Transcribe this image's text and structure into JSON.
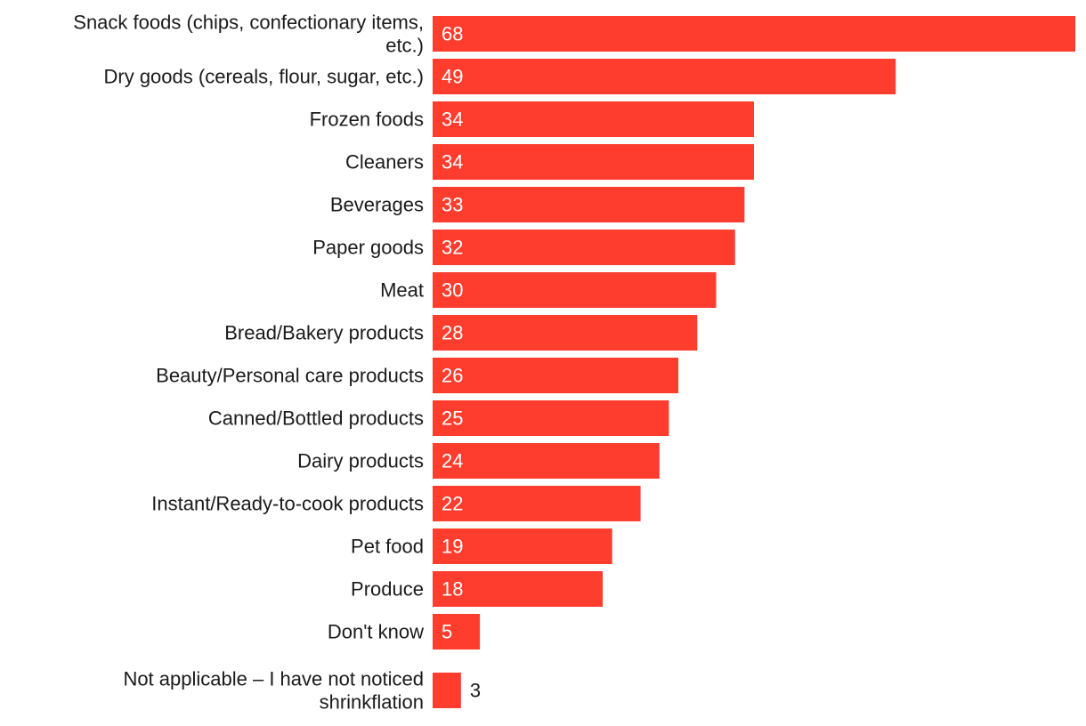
{
  "chart_data": {
    "type": "bar",
    "orientation": "horizontal",
    "title": "",
    "xlabel": "",
    "ylabel": "",
    "xlim": [
      0,
      68
    ],
    "grid": false,
    "bar_color": "#ff3d2e",
    "inside_label_color": "#ffffff",
    "outside_label_color": "#1a1a1a",
    "category_label_color": "#1a1a1a",
    "categories": [
      [
        "Snack foods (chips, confectionary items,",
        "etc.)"
      ],
      [
        "Dry goods (cereals, flour, sugar, etc.)"
      ],
      [
        "Frozen foods"
      ],
      [
        "Cleaners"
      ],
      [
        "Beverages"
      ],
      [
        "Paper goods"
      ],
      [
        "Meat"
      ],
      [
        "Bread/Bakery products"
      ],
      [
        "Beauty/Personal care products"
      ],
      [
        "Canned/Bottled products"
      ],
      [
        "Dairy products"
      ],
      [
        "Instant/Ready-to-cook products"
      ],
      [
        "Pet food"
      ],
      [
        "Produce"
      ],
      [
        "Don't know"
      ],
      [
        "Not applicable – I have not noticed",
        "shrinkflation"
      ]
    ],
    "values": [
      68,
      49,
      34,
      34,
      33,
      32,
      30,
      28,
      26,
      25,
      24,
      22,
      19,
      18,
      5,
      3
    ]
  }
}
